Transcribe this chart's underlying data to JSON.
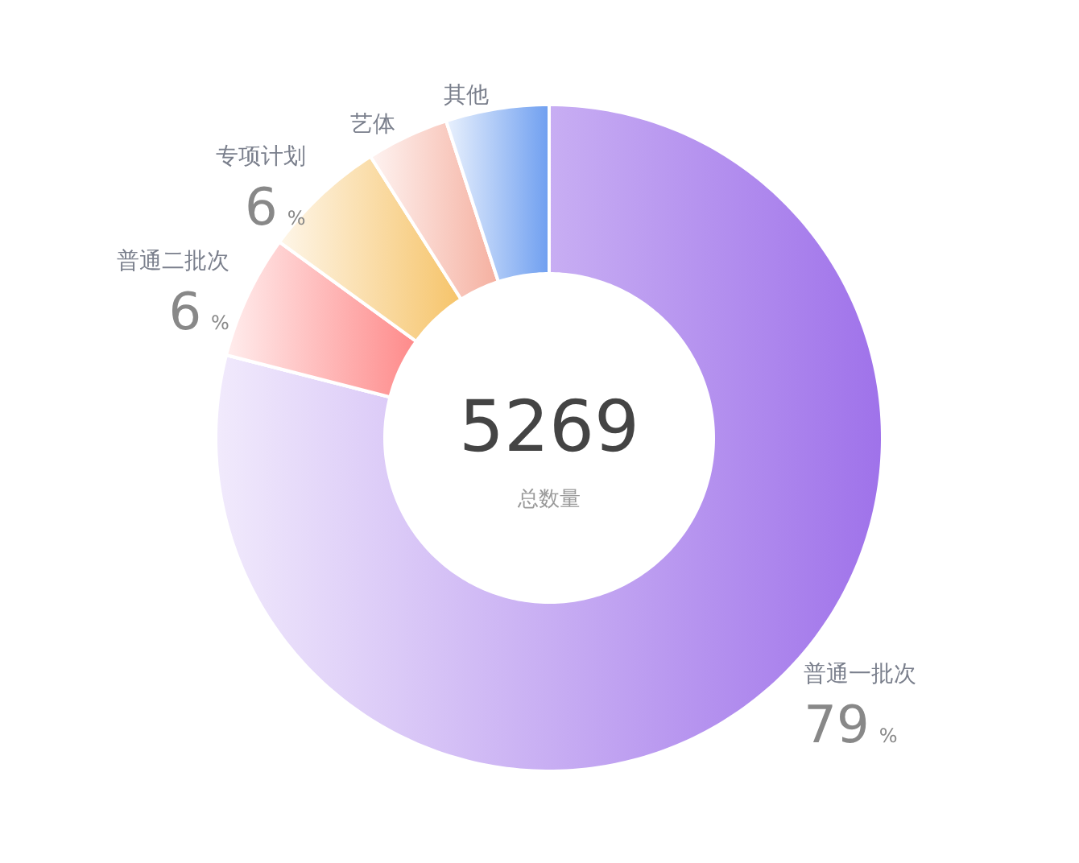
{
  "chart_data": {
    "type": "donut",
    "categories": [
      "普通一批次",
      "普通二批次",
      "专项计划",
      "艺体",
      "其他"
    ],
    "values": [
      79,
      6,
      6,
      4,
      5
    ],
    "colors": [
      "#9f72ea",
      "#fe8a8a",
      "#f6c46a",
      "#f5b0a0",
      "#6f9ff0"
    ],
    "value_labels": [
      "79 %",
      "6 %",
      "6 %",
      null,
      null
    ],
    "annotations": [
      "5269",
      "总数量"
    ]
  }
}
